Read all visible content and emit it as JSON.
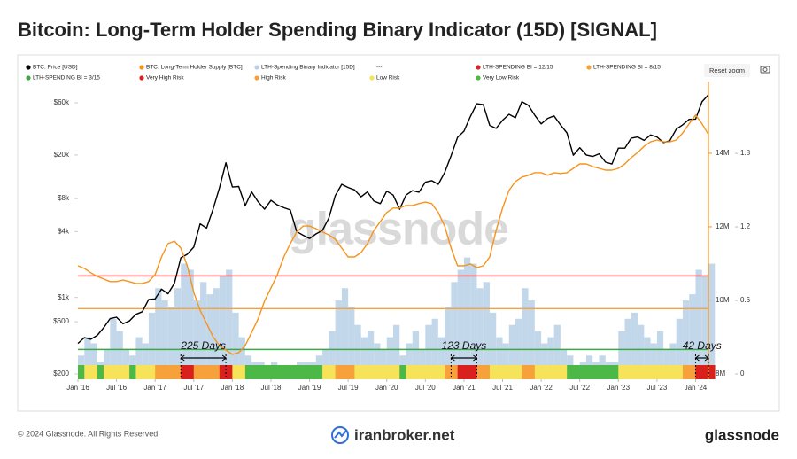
{
  "chart_data": {
    "type": "line",
    "title": "Bitcoin: Long-Term Holder Spending Binary Indicator (15D) [SIGNAL]",
    "watermark": "glassnode",
    "reset_button": "Reset zoom",
    "x": [
      "2016-01",
      "2016-02",
      "2016-03",
      "2016-04",
      "2016-05",
      "2016-06",
      "2016-07",
      "2016-08",
      "2016-09",
      "2016-10",
      "2016-11",
      "2016-12",
      "2017-01",
      "2017-02",
      "2017-03",
      "2017-04",
      "2017-05",
      "2017-06",
      "2017-07",
      "2017-08",
      "2017-09",
      "2017-10",
      "2017-11",
      "2017-12",
      "2018-01",
      "2018-02",
      "2018-03",
      "2018-04",
      "2018-05",
      "2018-06",
      "2018-07",
      "2018-08",
      "2018-09",
      "2018-10",
      "2018-11",
      "2018-12",
      "2019-01",
      "2019-02",
      "2019-03",
      "2019-04",
      "2019-05",
      "2019-06",
      "2019-07",
      "2019-08",
      "2019-09",
      "2019-10",
      "2019-11",
      "2019-12",
      "2020-01",
      "2020-02",
      "2020-03",
      "2020-04",
      "2020-05",
      "2020-06",
      "2020-07",
      "2020-08",
      "2020-09",
      "2020-10",
      "2020-11",
      "2020-12",
      "2021-01",
      "2021-02",
      "2021-03",
      "2021-04",
      "2021-05",
      "2021-06",
      "2021-07",
      "2021-08",
      "2021-09",
      "2021-10",
      "2021-11",
      "2021-12",
      "2022-01",
      "2022-02",
      "2022-03",
      "2022-04",
      "2022-05",
      "2022-06",
      "2022-07",
      "2022-08",
      "2022-09",
      "2022-10",
      "2022-11",
      "2022-12",
      "2023-01",
      "2023-02",
      "2023-03",
      "2023-04",
      "2023-05",
      "2023-06",
      "2023-07",
      "2023-08",
      "2023-09",
      "2023-10",
      "2023-11",
      "2023-12",
      "2024-01",
      "2024-02",
      "2024-03"
    ],
    "xlim": [
      "2016-01",
      "2024-03"
    ],
    "xticks": [
      {
        "value": "2016-01",
        "label": "Jan '16"
      },
      {
        "value": "2016-07",
        "label": "Jul '16"
      },
      {
        "value": "2017-01",
        "label": "Jan '17"
      },
      {
        "value": "2017-07",
        "label": "Jul '17"
      },
      {
        "value": "2018-01",
        "label": "Jan '18"
      },
      {
        "value": "2018-07",
        "label": "Jul '18"
      },
      {
        "value": "2019-01",
        "label": "Jan '19"
      },
      {
        "value": "2019-07",
        "label": "Jul '19"
      },
      {
        "value": "2020-01",
        "label": "Jan '20"
      },
      {
        "value": "2020-07",
        "label": "Jul '20"
      },
      {
        "value": "2021-01",
        "label": "Jan '21"
      },
      {
        "value": "2021-07",
        "label": "Jul '21"
      },
      {
        "value": "2022-01",
        "label": "Jan '22"
      },
      {
        "value": "2022-07",
        "label": "Jul '22"
      },
      {
        "value": "2023-01",
        "label": "Jan '23"
      },
      {
        "value": "2023-07",
        "label": "Jul '23"
      },
      {
        "value": "2024-01",
        "label": "Jan '24"
      }
    ],
    "ylog": true,
    "ylim": [
      179,
      93800
    ],
    "yticks": [
      {
        "value": 200,
        "label": "$200"
      },
      {
        "value": 600,
        "label": "$600"
      },
      {
        "value": 1000,
        "label": "$1k"
      },
      {
        "value": 4000,
        "label": "$4k"
      },
      {
        "value": 8000,
        "label": "$8k"
      },
      {
        "value": 20000,
        "label": "$20k"
      },
      {
        "value": 60000,
        "label": "$60k"
      }
    ],
    "y2lim": [
      7855000,
      15950000
    ],
    "y2ticks": [
      {
        "value": 8000000,
        "label": "8M"
      },
      {
        "value": 10000000,
        "label": "10M"
      },
      {
        "value": 12000000,
        "label": "12M"
      },
      {
        "value": 14000000,
        "label": "14M"
      }
    ],
    "y3lim": [
      -0.043,
      2.386
    ],
    "y3ticks": [
      0,
      0.6,
      1.2,
      1.8
    ],
    "grid": false,
    "series": [
      {
        "name": "BTC: Price [USD]",
        "color": "#000000",
        "type": "line",
        "axis": "y",
        "values": [
          380,
          430,
          415,
          450,
          530,
          640,
          660,
          575,
          610,
          700,
          740,
          960,
          970,
          1190,
          1080,
          1350,
          2300,
          2480,
          2880,
          4700,
          4300,
          6400,
          10000,
          17000,
          10200,
          10300,
          6900,
          9200,
          7500,
          6400,
          7700,
          7000,
          6600,
          6300,
          4000,
          3700,
          3450,
          3800,
          4100,
          5300,
          8500,
          10800,
          10100,
          9600,
          8300,
          9200,
          7600,
          7200,
          9350,
          8600,
          6400,
          8600,
          9450,
          9150,
          11300,
          11650,
          10800,
          13800,
          19700,
          29000,
          33000,
          45000,
          58800,
          57700,
          37300,
          35000,
          41500,
          47100,
          43800,
          61300,
          57000,
          46300,
          38500,
          43200,
          45500,
          37700,
          31800,
          19900,
          23300,
          20000,
          19400,
          20500,
          17200,
          16550,
          23100,
          23100,
          28500,
          29200,
          27200,
          30500,
          29200,
          26000,
          27000,
          34500,
          37700,
          42300,
          42600,
          61200,
          71000
        ]
      },
      {
        "name": "BTC: Long-Term Holder Supply [BTC]",
        "color": "#f7931a",
        "type": "line",
        "axis": "y2",
        "values": [
          10940000,
          10870000,
          10750000,
          10650000,
          10580000,
          10510000,
          10510000,
          10550000,
          10510000,
          10460000,
          10460000,
          10510000,
          10700000,
          11180000,
          11540000,
          11610000,
          11420000,
          10940000,
          10220000,
          9730000,
          9370000,
          9010000,
          8770000,
          8650000,
          8530000,
          8580000,
          8770000,
          9130000,
          9490000,
          9980000,
          10340000,
          10700000,
          11180000,
          11540000,
          11860000,
          12020000,
          12020000,
          11950000,
          11860000,
          11780000,
          11660000,
          11420000,
          11180000,
          11180000,
          11300000,
          11540000,
          11900000,
          12140000,
          12390000,
          12510000,
          12510000,
          12580000,
          12580000,
          12630000,
          12670000,
          12630000,
          12390000,
          12020000,
          11420000,
          10940000,
          10940000,
          10990000,
          10890000,
          10940000,
          11180000,
          11900000,
          12510000,
          12990000,
          13230000,
          13350000,
          13400000,
          13470000,
          13470000,
          13400000,
          13470000,
          13450000,
          13470000,
          13590000,
          13710000,
          13710000,
          13640000,
          13590000,
          13540000,
          13540000,
          13590000,
          13710000,
          13880000,
          14020000,
          14190000,
          14310000,
          14360000,
          14310000,
          14310000,
          14360000,
          14550000,
          14800000,
          15040000,
          14800000,
          14510000
        ]
      },
      {
        "name": "LTH-Spending Binary Indicator [15D]",
        "color": "#b9d0e8",
        "type": "bar",
        "axis": "y3",
        "values": [
          0.15,
          0.3,
          0.25,
          0.1,
          0.2,
          0.45,
          0.35,
          0.2,
          0.15,
          0.3,
          0.25,
          0.5,
          0.7,
          0.6,
          0.55,
          0.7,
          0.9,
          0.85,
          0.6,
          0.75,
          0.65,
          0.7,
          0.8,
          0.85,
          0.5,
          0.3,
          0.15,
          0.1,
          0.1,
          0.05,
          0.1,
          0.05,
          0.05,
          0.05,
          0.1,
          0.1,
          0.1,
          0.15,
          0.2,
          0.35,
          0.6,
          0.7,
          0.55,
          0.4,
          0.3,
          0.35,
          0.25,
          0.2,
          0.3,
          0.4,
          0.15,
          0.25,
          0.35,
          0.2,
          0.4,
          0.45,
          0.3,
          0.55,
          0.75,
          0.85,
          0.95,
          0.9,
          0.7,
          0.75,
          0.5,
          0.3,
          0.25,
          0.4,
          0.45,
          0.7,
          0.6,
          0.35,
          0.25,
          0.3,
          0.4,
          0.2,
          0.15,
          0.05,
          0.1,
          0.15,
          0.1,
          0.15,
          0.1,
          0.1,
          0.35,
          0.45,
          0.5,
          0.4,
          0.3,
          0.25,
          0.35,
          0.2,
          0.25,
          0.45,
          0.6,
          0.65,
          0.85,
          0.8,
          0.9
        ]
      }
    ],
    "legend_separator": "---",
    "thresholds": [
      {
        "name": "LTH-SPENDING BI = 12/15",
        "color": "#d62728",
        "value": 0.8
      },
      {
        "name": "LTH-SPENDING BI = 8/15",
        "color": "#f7a13a",
        "value": 0.5333
      },
      {
        "name": "LTH-SPENDING BI = 3/15",
        "color": "#3aa845",
        "value": 0.2
      }
    ],
    "risk_levels": [
      {
        "name": "Very High Risk",
        "color": "#d9201c"
      },
      {
        "name": "High Risk",
        "color": "#f7a13a"
      },
      {
        "name": "Low Risk",
        "color": "#f6e35a"
      },
      {
        "name": "Very Low Risk",
        "color": "#4cb848"
      }
    ],
    "annotations": [
      {
        "text": "225 Days",
        "start": "2017-05",
        "end": "2017-12"
      },
      {
        "text": "123 Days",
        "start": "2020-11",
        "end": "2021-03"
      },
      {
        "text": "42 Days",
        "start": "2024-01",
        "end": "2024-03"
      }
    ]
  },
  "footer": {
    "copyright": "© 2024 Glassnode. All Rights Reserved.",
    "brand": "iranbroker.net",
    "logo": "glassnode"
  }
}
